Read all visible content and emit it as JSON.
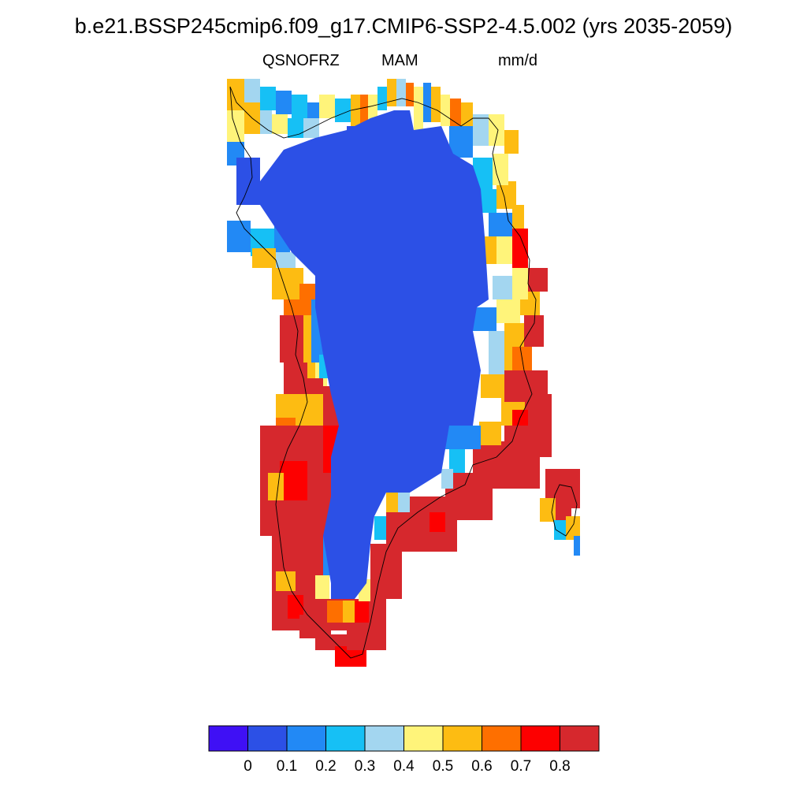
{
  "title": "b.e21.BSSP245cmip6.f09_g17.CMIP6-SSP2-4.5.002 (yrs 2035-2059)",
  "subtitle": {
    "variable": "QSNOFRZ",
    "season": "MAM",
    "units": "mm/d"
  },
  "colorbar": {
    "colors": [
      "#3f10f5",
      "#2c50e6",
      "#2289f5",
      "#16c0f5",
      "#a3d6f0",
      "#fff47a",
      "#fdbc12",
      "#fe6f00",
      "#fd0000",
      "#d6282d"
    ],
    "tick_labels": [
      "0",
      "0.1",
      "0.2",
      "0.3",
      "0.4",
      "0.5",
      "0.6",
      "0.7",
      "0.8"
    ]
  },
  "map_field": {
    "region": "Greenland",
    "interior_value_class": "0-0.1",
    "coastal_high_value_class": ">0.8"
  }
}
